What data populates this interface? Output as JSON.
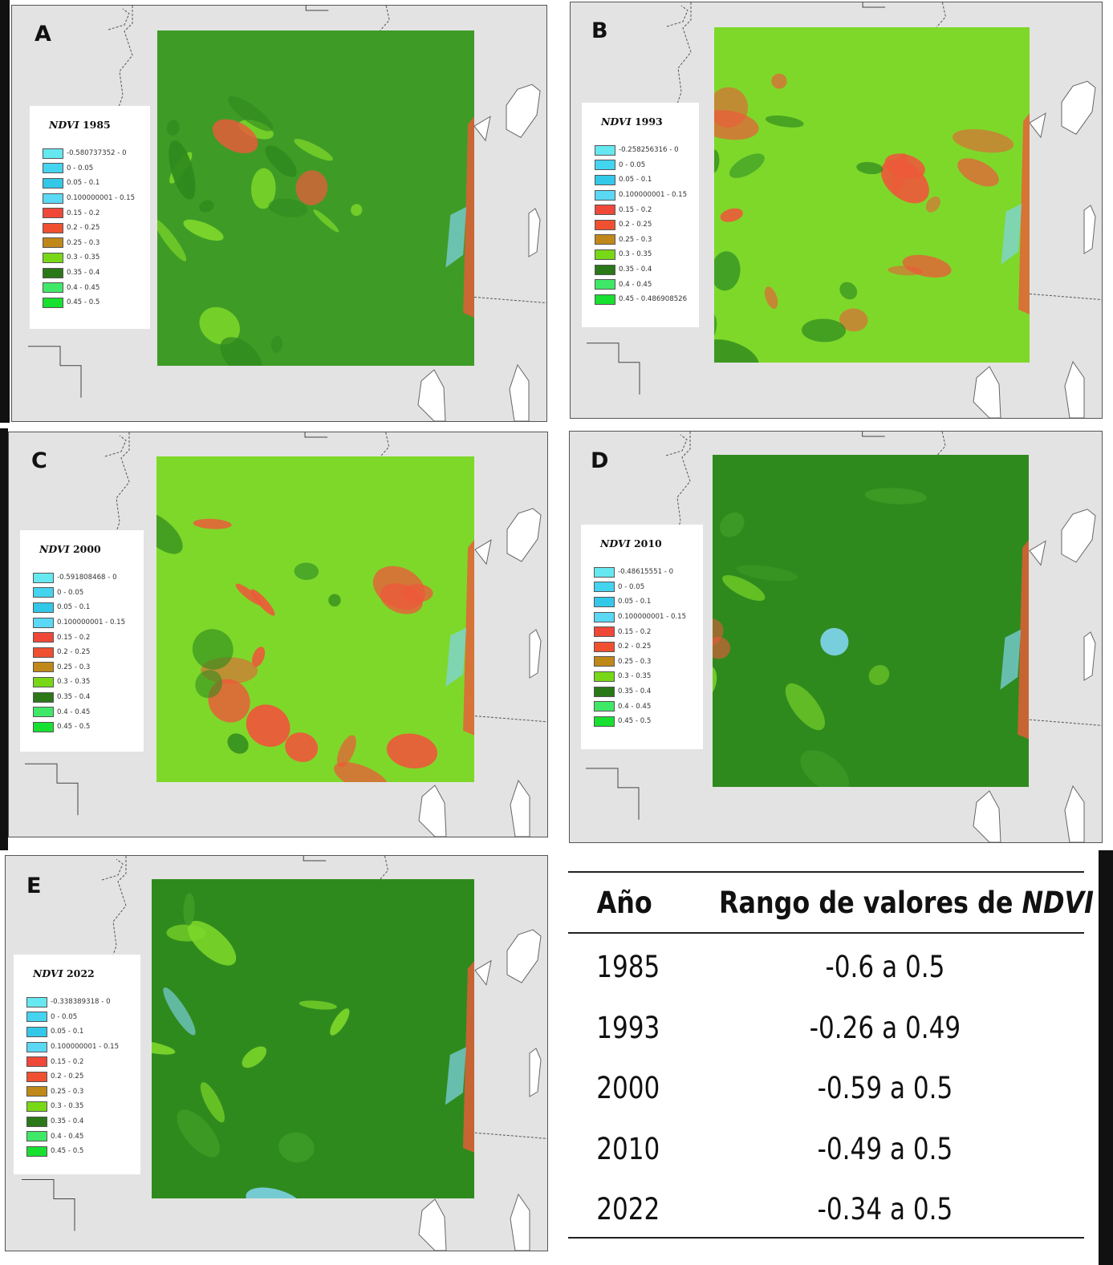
{
  "panels": [
    {
      "letter": "A",
      "legend_title_prefix": "NDVI",
      "legend_title_year": "1985",
      "legend": [
        "-0.580737352 - 0",
        "0 - 0.05",
        "0.05 - 0.1",
        "0.100000001 - 0.15",
        "0.15 - 0.2",
        "0.2 - 0.25",
        "0.25 - 0.3",
        "0.3 - 0.35",
        "0.35 - 0.4",
        "0.4 - 0.45",
        "0.45 - 0.5"
      ]
    },
    {
      "letter": "B",
      "legend_title_prefix": "NDVI",
      "legend_title_year": "1993",
      "legend": [
        "-0.258256316 - 0",
        "0 - 0.05",
        "0.05 - 0.1",
        "0.100000001 - 0.15",
        "0.15 - 0.2",
        "0.2 - 0.25",
        "0.25 - 0.3",
        "0.3 - 0.35",
        "0.35 - 0.4",
        "0.4 - 0.45",
        "0.45 - 0.486908526"
      ]
    },
    {
      "letter": "C",
      "legend_title_prefix": "NDVI",
      "legend_title_year": "2000",
      "legend": [
        "-0.591808468 - 0",
        "0 - 0.05",
        "0.05 - 0.1",
        "0.100000001 - 0.15",
        "0.15 - 0.2",
        "0.2 - 0.25",
        "0.25 - 0.3",
        "0.3 - 0.35",
        "0.35 - 0.4",
        "0.4 - 0.45",
        "0.45 - 0.5"
      ]
    },
    {
      "letter": "D",
      "legend_title_prefix": "NDVI",
      "legend_title_year": "2010",
      "legend": [
        "-0.48615551 - 0",
        "0 - 0.05",
        "0.05 - 0.1",
        "0.100000001 - 0.15",
        "0.15 - 0.2",
        "0.2 - 0.25",
        "0.25 - 0.3",
        "0.3 - 0.35",
        "0.35 - 0.4",
        "0.4 - 0.45",
        "0.45 - 0.5"
      ]
    },
    {
      "letter": "E",
      "legend_title_prefix": "NDVI",
      "legend_title_year": "2022",
      "legend": [
        "-0.338389318 - 0",
        "0 - 0.05",
        "0.05 - 0.1",
        "0.100000001 - 0.15",
        "0.15 - 0.2",
        "0.2 - 0.25",
        "0.25 - 0.3",
        "0.3 - 0.35",
        "0.35 - 0.4",
        "0.4 - 0.45",
        "0.45 - 0.5"
      ]
    }
  ],
  "legend_colors": [
    "#66e8f0",
    "#44d4f0",
    "#33c8e8",
    "#5ad8f4",
    "#f04838",
    "#f05030",
    "#c08818",
    "#78d818",
    "#2a7818",
    "#40e868",
    "#18e030"
  ],
  "map_palette": {
    "dark_green": "#2f8a1e",
    "mid_green": "#3e9c26",
    "light_green": "#7ed82a",
    "red": "#ec5a3a",
    "cyan": "#7fd4ea"
  },
  "table": {
    "header_year": "Año",
    "header_range_prefix": "Rango de valores de ",
    "header_range_ital": "NDVI",
    "rows": [
      {
        "year": "1985",
        "range": "-0.6 a 0.5"
      },
      {
        "year": "1993",
        "range": "-0.26 a 0.49"
      },
      {
        "year": "2000",
        "range": "-0.59 a 0.5"
      },
      {
        "year": "2010",
        "range": "-0.49 a 0.5"
      },
      {
        "year": "2022",
        "range": "-0.34 a 0.5"
      }
    ]
  }
}
